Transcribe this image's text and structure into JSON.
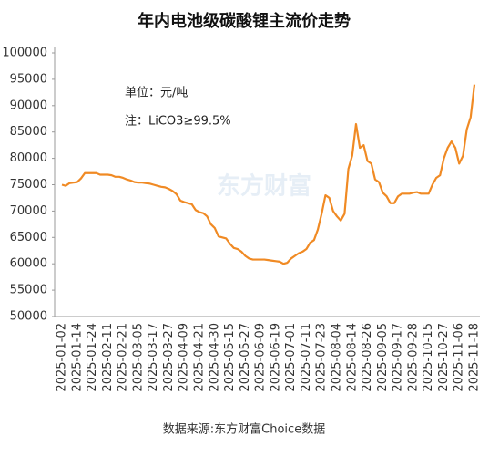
{
  "chart_data": {
    "type": "line",
    "title": "年内电池级碳酸锂主流价走势",
    "annotations": [
      "单位：元/吨",
      "注：LiCO3≥99.5%"
    ],
    "watermark": "东方财富",
    "source": "数据来源:东方财富Choice数据",
    "categories": [
      "2025-01-02",
      null,
      null,
      null,
      "2025-01-14",
      null,
      null,
      null,
      "2025-01-24",
      null,
      null,
      null,
      "2025-02-11",
      null,
      null,
      null,
      "2025-02-21",
      null,
      null,
      null,
      "2025-03-05",
      null,
      null,
      null,
      "2025-03-17",
      null,
      null,
      null,
      "2025-03-27",
      null,
      null,
      null,
      "2025-04-09",
      null,
      null,
      null,
      "2025-04-21",
      null,
      null,
      null,
      "2025-04-30",
      null,
      null,
      null,
      "2025-05-15",
      null,
      null,
      null,
      "2025-05-27",
      null,
      null,
      null,
      "2025-06-09",
      null,
      null,
      null,
      "2025-06-19",
      null,
      null,
      null,
      "2025-07-01",
      null,
      null,
      null,
      "2025-07-11",
      null,
      null,
      null,
      "2025-07-23",
      null,
      null,
      null,
      "2025-08-04",
      null,
      null,
      null,
      "2025-08-14",
      null,
      null,
      null,
      "2025-08-26",
      null,
      null,
      null,
      "2025-09-05",
      null,
      null,
      null,
      "2025-09-17",
      null,
      null,
      null,
      "2025-09-28",
      null,
      null,
      null,
      "2025-10-15",
      null,
      null,
      null,
      "2025-10-27",
      null,
      null,
      null,
      "2025-11-06",
      null,
      null,
      null,
      "2025-11-18"
    ],
    "series": [
      {
        "color": "#f08a24",
        "values": [
          75000,
          74800,
          75300,
          75400,
          75500,
          76200,
          77200,
          77200,
          77200,
          77200,
          76900,
          76900,
          76900,
          76800,
          76500,
          76500,
          76300,
          76000,
          75800,
          75500,
          75400,
          75400,
          75300,
          75200,
          75000,
          74800,
          74600,
          74500,
          74200,
          73800,
          73200,
          72000,
          71700,
          71500,
          71300,
          70200,
          69800,
          69600,
          69000,
          67500,
          66800,
          65200,
          65000,
          64800,
          63800,
          63000,
          62800,
          62300,
          61500,
          61000,
          60800,
          60800,
          60800,
          60800,
          60700,
          60600,
          60500,
          60400,
          60000,
          60200,
          61000,
          61500,
          62000,
          62300,
          62800,
          64000,
          64500,
          66500,
          69500,
          73000,
          72500,
          70000,
          69000,
          68200,
          69500,
          78000,
          80500,
          86500,
          82000,
          82500,
          79500,
          79000,
          76000,
          75500,
          73500,
          72800,
          71500,
          71500,
          72800,
          73300,
          73300,
          73300,
          73500,
          73600,
          73300,
          73300,
          73300,
          75000,
          76300,
          76800,
          80000,
          82000,
          83200,
          82000,
          79000,
          80500,
          85500,
          87800,
          94000
        ]
      }
    ],
    "ylim": [
      50000,
      100000
    ],
    "yticks": [
      50000,
      55000,
      60000,
      65000,
      70000,
      75000,
      80000,
      85000,
      90000,
      95000,
      100000
    ],
    "grid": false
  }
}
